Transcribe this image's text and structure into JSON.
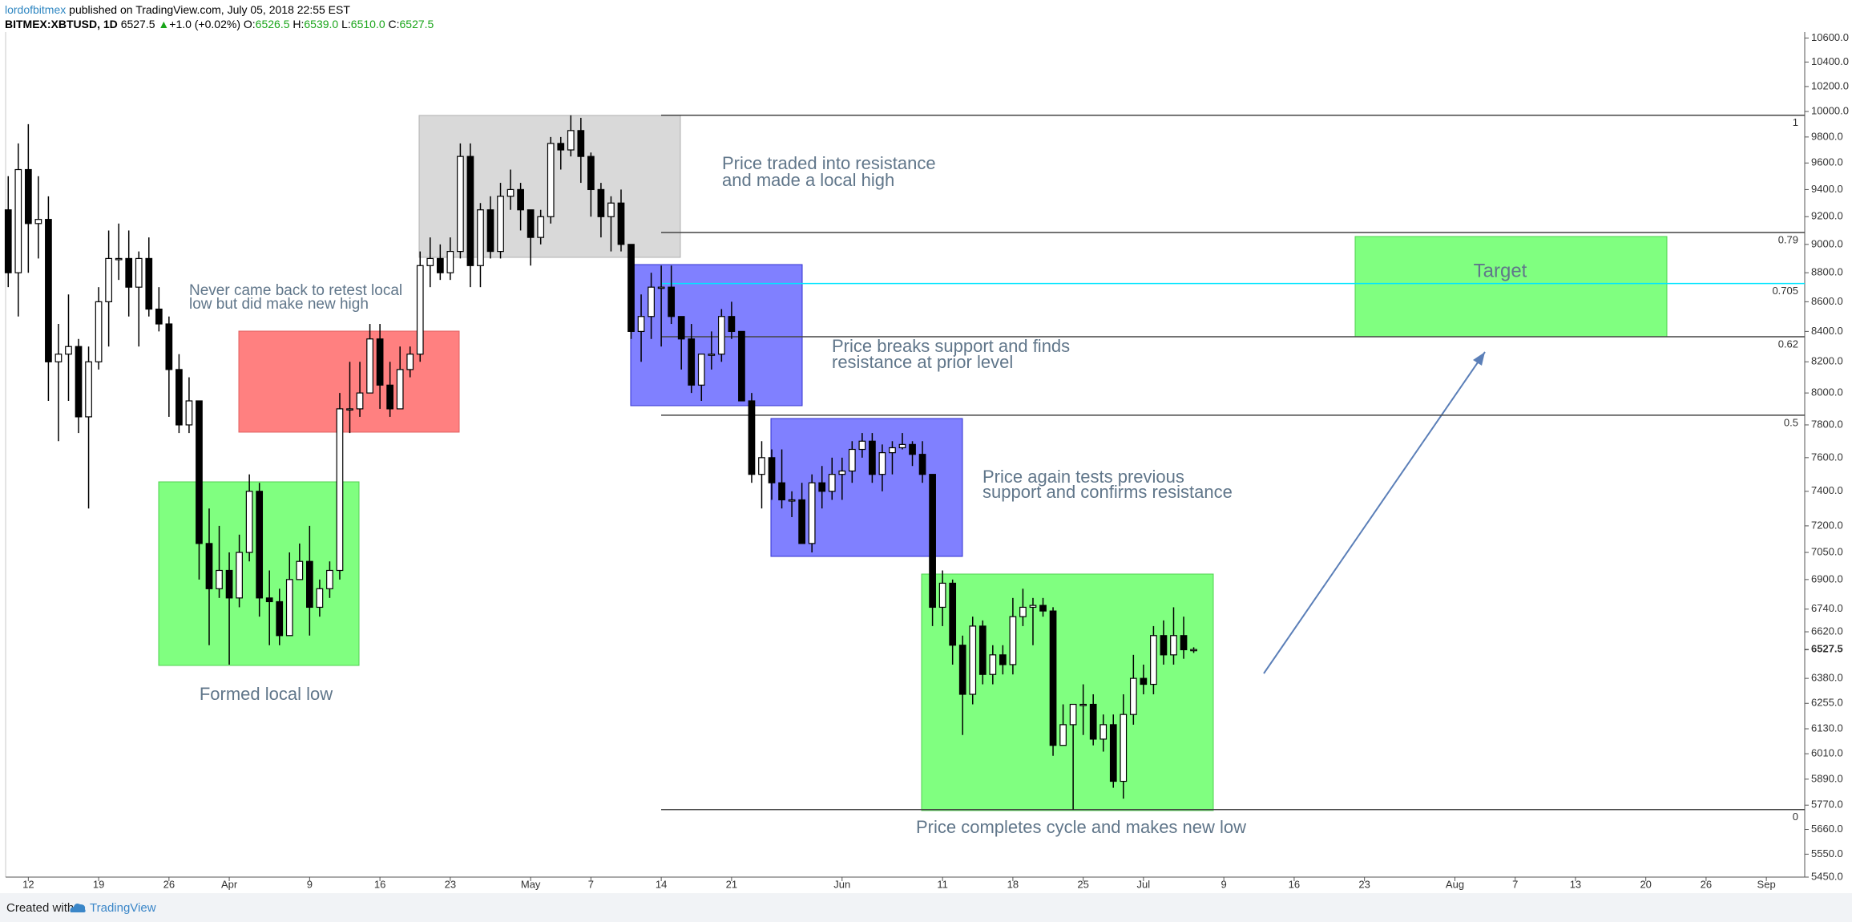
{
  "header": {
    "author": "lordofbitmex",
    "published": "published on TradingView.com, July 05, 2018 22:55 EST",
    "symbol": "BITMEX:XBTUSD, 1D",
    "last": "6527.5",
    "arrow": "▲",
    "change": "+1.0 (+0.02%)",
    "ohlc": [
      {
        "label": "O:",
        "value": "6526.5"
      },
      {
        "label": "H:",
        "value": "6539.0"
      },
      {
        "label": "L:",
        "value": "6510.0"
      },
      {
        "label": "C:",
        "value": "6527.5"
      }
    ]
  },
  "footer": {
    "created": "Created with",
    "brand": "TradingView"
  },
  "chart_data": {
    "type": "candlestick",
    "yscale": "log",
    "ylim": [
      5450,
      10650
    ],
    "up_color": "#ffffff",
    "down_color": "#000000",
    "wick_color": "#000000",
    "yticks": [
      {
        "value": 10600,
        "label": "10600.0"
      },
      {
        "value": 10400,
        "label": "10400.0"
      },
      {
        "value": 10200,
        "label": "10200.0"
      },
      {
        "value": 10000,
        "label": "10000.0"
      },
      {
        "value": 9800,
        "label": "9800.0"
      },
      {
        "value": 9600,
        "label": "9600.0"
      },
      {
        "value": 9400,
        "label": "9400.0"
      },
      {
        "value": 9200,
        "label": "9200.0"
      },
      {
        "value": 9000,
        "label": "9000.0"
      },
      {
        "value": 8800,
        "label": "8800.0"
      },
      {
        "value": 8600,
        "label": "8600.0"
      },
      {
        "value": 8400,
        "label": "8400.0"
      },
      {
        "value": 8200,
        "label": "8200.0"
      },
      {
        "value": 8000,
        "label": "8000.0"
      },
      {
        "value": 7800,
        "label": "7800.0"
      },
      {
        "value": 7600,
        "label": "7600.0"
      },
      {
        "value": 7400,
        "label": "7400.0"
      },
      {
        "value": 7200,
        "label": "7200.0"
      },
      {
        "value": 7050,
        "label": "7050.0"
      },
      {
        "value": 6900,
        "label": "6900.0"
      },
      {
        "value": 6740,
        "label": "6740.0"
      },
      {
        "value": 6620,
        "label": "6620.0"
      },
      {
        "value": 6380,
        "label": "6380.0"
      },
      {
        "value": 6255,
        "label": "6255.0"
      },
      {
        "value": 6130,
        "label": "6130.0"
      },
      {
        "value": 6010,
        "label": "6010.0"
      },
      {
        "value": 5890,
        "label": "5890.0"
      },
      {
        "value": 5770,
        "label": "5770.0"
      },
      {
        "value": 5660,
        "label": "5660.0"
      },
      {
        "value": 5550,
        "label": "5550.0"
      },
      {
        "value": 5450,
        "label": "5450.0"
      }
    ],
    "last_price": 6527.5,
    "categories": [
      null,
      null,
      "12",
      null,
      null,
      null,
      null,
      null,
      null,
      "19",
      null,
      null,
      null,
      null,
      null,
      null,
      "26",
      null,
      null,
      null,
      null,
      null,
      "Apr",
      null,
      null,
      null,
      null,
      null,
      null,
      null,
      "9",
      null,
      null,
      null,
      null,
      null,
      null,
      "16",
      null,
      null,
      null,
      null,
      null,
      null,
      "23",
      null,
      null,
      null,
      null,
      null,
      null,
      null,
      "May",
      null,
      null,
      null,
      null,
      null,
      "7",
      null,
      null,
      null,
      null,
      null,
      null,
      "14",
      null,
      null,
      null,
      null,
      null,
      null,
      "21",
      null,
      null,
      null,
      null,
      null,
      null,
      null,
      null,
      null,
      null,
      "Jun",
      null,
      null,
      null,
      null,
      null,
      null,
      null,
      null,
      null,
      "11",
      null,
      null,
      null,
      null,
      null,
      null,
      "18",
      null,
      null,
      null,
      null,
      null,
      null,
      "25",
      null,
      null,
      null,
      null,
      null,
      "Jul",
      null,
      null,
      null,
      null,
      null,
      null,
      null,
      "9",
      null,
      null,
      null,
      null,
      null,
      null,
      "16",
      null,
      null,
      null,
      null,
      null,
      null,
      "23",
      null,
      null,
      null,
      null,
      null,
      null,
      null,
      null,
      "Aug",
      null,
      null,
      null,
      null,
      null,
      "7",
      null,
      null,
      null,
      null,
      null,
      "13",
      null,
      null,
      null,
      null,
      null,
      null,
      "20",
      null,
      null,
      null,
      null,
      null,
      "26",
      null,
      null,
      null,
      null,
      null,
      "Sep",
      null,
      null,
      null
    ],
    "open": [
      9250,
      8800,
      9550,
      9150,
      9180,
      8200,
      8250,
      8300,
      7850,
      8200,
      8600,
      8900,
      8900,
      8700,
      8900,
      8550,
      8450,
      8150,
      7800,
      7950,
      7100,
      6850,
      6950,
      6800,
      7050,
      7400,
      6800,
      6780,
      6600,
      6900,
      7000,
      6750,
      6850,
      6950,
      7900,
      7900,
      8000,
      8350,
      8050,
      7900,
      8150,
      8250,
      8850,
      8900,
      8800,
      8950,
      9650,
      8850,
      9250,
      8950,
      9350,
      9400,
      9250,
      9050,
      9200,
      9750,
      9700,
      9850,
      9650,
      9400,
      9200,
      9300,
      9000,
      8400,
      8500,
      8700,
      8700,
      8500,
      8350,
      8050,
      8250,
      8250,
      8500,
      8400,
      7950,
      7500,
      7600,
      7450,
      7350,
      7350,
      7100,
      7450,
      7400,
      7500,
      7520,
      7650,
      7700,
      7500,
      7630,
      7660,
      7680,
      7620,
      7500,
      6750,
      6880,
      6550,
      6300,
      6650,
      6400,
      6500,
      6450,
      6700,
      6750,
      6760,
      6730,
      6050,
      6150,
      6250,
      6250,
      6080,
      6150,
      5880,
      6200,
      6380,
      6350,
      6600,
      6500,
      6600,
      6526.5,
      null,
      null,
      null,
      null,
      null,
      null,
      null,
      null,
      null,
      null,
      null,
      null,
      null,
      null,
      null,
      null,
      null,
      null,
      null,
      null,
      null,
      null,
      null,
      null,
      null,
      null,
      null,
      null,
      null,
      null,
      null,
      null,
      null,
      null,
      null,
      null,
      null,
      null,
      null,
      null,
      null,
      null,
      null,
      null,
      null,
      null,
      null,
      null,
      null,
      null,
      null,
      null,
      null,
      null,
      null,
      null,
      null,
      null,
      null,
      null
    ],
    "high": [
      9500,
      9750,
      9900,
      9500,
      9350,
      8450,
      8650,
      8350,
      8300,
      8700,
      9100,
      9150,
      9100,
      8950,
      9050,
      8700,
      8500,
      8250,
      8100,
      7950,
      7300,
      7200,
      7050,
      7150,
      7500,
      7450,
      6950,
      6850,
      7050,
      7100,
      7200,
      6900,
      7000,
      8000,
      8200,
      8200,
      8450,
      8450,
      8200,
      8300,
      8300,
      8950,
      9050,
      9000,
      9050,
      9750,
      9750,
      9300,
      9350,
      9450,
      9550,
      9450,
      9250,
      9250,
      9800,
      9800,
      9970,
      9950,
      9680,
      9450,
      9350,
      9400,
      9000,
      8650,
      8800,
      8850,
      8850,
      8500,
      8450,
      8250,
      8400,
      8550,
      8600,
      8400,
      8000,
      7700,
      7650,
      7650,
      7400,
      7450,
      7500,
      7550,
      7600,
      7600,
      7700,
      7750,
      7750,
      7680,
      7700,
      7750,
      7700,
      7700,
      7500,
      6950,
      6900,
      6600,
      6700,
      6680,
      6550,
      6550,
      6800,
      6850,
      6800,
      6800,
      6750,
      6250,
      6250,
      6350,
      6300,
      6200,
      6200,
      6300,
      6500,
      6450,
      6650,
      6680,
      6750,
      6700,
      6539,
      null,
      null,
      null,
      null,
      null,
      null,
      null,
      null,
      null,
      null,
      null,
      null,
      null,
      null,
      null,
      null,
      null,
      null,
      null,
      null,
      null,
      null,
      null,
      null,
      null,
      null,
      null,
      null,
      null,
      null,
      null,
      null,
      null,
      null,
      null,
      null,
      null,
      null,
      null,
      null,
      null,
      null,
      null,
      null,
      null,
      null,
      null,
      null,
      null,
      null,
      null,
      null,
      null,
      null,
      null,
      null,
      null,
      null,
      null,
      null
    ],
    "low": [
      8700,
      8500,
      8800,
      8900,
      7950,
      7700,
      7950,
      7750,
      7300,
      8150,
      8300,
      8750,
      8500,
      8300,
      8500,
      8400,
      7850,
      7750,
      7750,
      6900,
      6550,
      6800,
      6450,
      6750,
      7000,
      6700,
      6550,
      6550,
      6600,
      6900,
      6600,
      6700,
      6800,
      6900,
      7750,
      7850,
      8000,
      7900,
      7850,
      7900,
      8100,
      8200,
      8700,
      8750,
      8750,
      8900,
      8700,
      8700,
      8900,
      8900,
      9250,
      9100,
      8850,
      9000,
      9150,
      9550,
      9650,
      9450,
      9200,
      9050,
      8950,
      8950,
      8350,
      8200,
      8350,
      8300,
      8450,
      8150,
      8000,
      7950,
      8150,
      8200,
      8350,
      7950,
      7450,
      7300,
      7350,
      7300,
      7250,
      7100,
      7050,
      7300,
      7350,
      7350,
      7450,
      7600,
      7450,
      7400,
      7500,
      7650,
      7550,
      7450,
      6650,
      6650,
      6450,
      6100,
      6250,
      6350,
      6350,
      6400,
      6400,
      6650,
      6550,
      6700,
      6000,
      6050,
      5750,
      6100,
      6050,
      6020,
      5850,
      5800,
      6150,
      6300,
      6300,
      6450,
      6450,
      6480,
      6510,
      null,
      null,
      null,
      null,
      null,
      null,
      null,
      null,
      null,
      null,
      null,
      null,
      null,
      null,
      null,
      null,
      null,
      null,
      null,
      null,
      null,
      null,
      null,
      null,
      null,
      null,
      null,
      null,
      null,
      null,
      null,
      null,
      null,
      null,
      null,
      null,
      null,
      null,
      null,
      null,
      null,
      null,
      null,
      null,
      null,
      null,
      null,
      null,
      null,
      null,
      null,
      null,
      null,
      null,
      null,
      null,
      null,
      null,
      null,
      null
    ],
    "close": [
      8800,
      9550,
      9150,
      9180,
      8200,
      8250,
      8300,
      7850,
      8200,
      8600,
      8900,
      8900,
      8700,
      8900,
      8550,
      8450,
      8150,
      7800,
      7950,
      7100,
      6850,
      6950,
      6800,
      7050,
      7400,
      6800,
      6780,
      6600,
      6900,
      7000,
      6750,
      6850,
      6950,
      7900,
      7900,
      8000,
      8350,
      8050,
      7900,
      8150,
      8250,
      8850,
      8900,
      8800,
      8950,
      9650,
      8850,
      9250,
      8950,
      9350,
      9400,
      9250,
      9050,
      9200,
      9750,
      9700,
      9850,
      9650,
      9400,
      9200,
      9300,
      9000,
      8400,
      8500,
      8700,
      8700,
      8500,
      8350,
      8050,
      8250,
      8250,
      8500,
      8400,
      7950,
      7500,
      7600,
      7450,
      7350,
      7350,
      7100,
      7450,
      7400,
      7500,
      7520,
      7650,
      7700,
      7500,
      7630,
      7660,
      7680,
      7620,
      7500,
      6750,
      6880,
      6550,
      6300,
      6650,
      6400,
      6500,
      6450,
      6700,
      6750,
      6760,
      6730,
      6050,
      6150,
      6250,
      6250,
      6080,
      6150,
      5880,
      6200,
      6380,
      6350,
      6600,
      6500,
      6600,
      6526.5,
      6527.5,
      null,
      null,
      null,
      null,
      null,
      null,
      null,
      null,
      null,
      null,
      null,
      null,
      null,
      null,
      null,
      null,
      null,
      null,
      null,
      null,
      null,
      null,
      null,
      null,
      null,
      null,
      null,
      null,
      null,
      null,
      null,
      null,
      null,
      null,
      null,
      null,
      null,
      null,
      null,
      null,
      null,
      null,
      null,
      null,
      null,
      null,
      null,
      null,
      null,
      null,
      null,
      null,
      null,
      null,
      null,
      null,
      null,
      null,
      null,
      null
    ],
    "fib_levels": [
      {
        "value": 9970,
        "label": "1",
        "color": "#444444"
      },
      {
        "value": 9085,
        "label": "0.79",
        "color": "#444444"
      },
      {
        "value": 8725,
        "label": "0.705",
        "color": "#00e5ff"
      },
      {
        "value": 8365,
        "label": "0.62",
        "color": "#444444"
      },
      {
        "value": 7860,
        "label": "0.5",
        "color": "#444444"
      },
      {
        "value": 5750,
        "label": "0",
        "color": "#444444"
      }
    ],
    "annotations": [
      {
        "lines": [
          "Never came back to retest local",
          "low but did make new high"
        ]
      },
      {
        "lines": [
          "Formed local low"
        ]
      },
      {
        "lines": [
          "Price traded into resistance",
          "and made a local high"
        ]
      },
      {
        "lines": [
          "Price breaks support and finds",
          "resistance at prior level"
        ]
      },
      {
        "lines": [
          "Price again tests previous",
          "support and confirms resistance"
        ]
      },
      {
        "lines": [
          "Price completes cycle and makes new low"
        ]
      },
      {
        "lines": [
          "Target"
        ]
      }
    ]
  }
}
